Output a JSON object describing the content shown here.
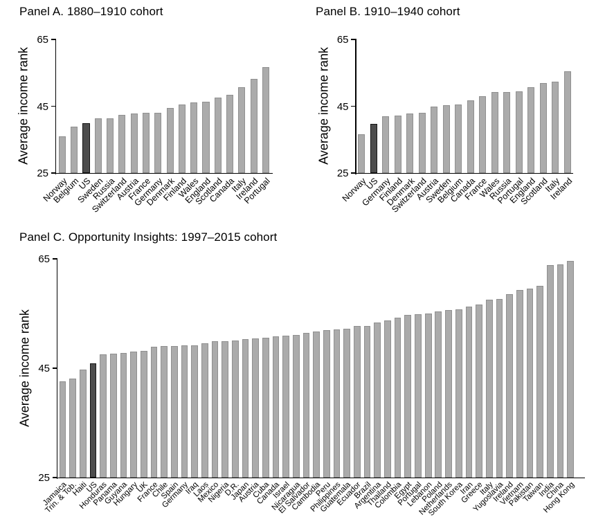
{
  "colors": {
    "bar_fill": "#ababab",
    "bar_border": "#8f8f8f",
    "highlight_fill": "#4d4d4d",
    "highlight_border": "#141414",
    "axis": "#000000",
    "background": "#ffffff"
  },
  "chart_data": [
    {
      "type": "bar",
      "title": "Panel A. 1880–1910 cohort",
      "xlabel": "",
      "ylabel": "Average income rank",
      "ylim": [
        25,
        65
      ],
      "yticks": [
        25,
        45,
        65
      ],
      "grid": false,
      "legend": "none",
      "highlight": "US",
      "categories": [
        "Norway",
        "Belgium",
        "US",
        "Sweden",
        "Russia",
        "Switzerland",
        "Austria",
        "France",
        "Germany",
        "Denmark",
        "Finland",
        "Wales",
        "England",
        "Scotland",
        "Canada",
        "Italy",
        "Ireland",
        "Portugal"
      ],
      "values": [
        35.9,
        38.8,
        39.9,
        41.3,
        41.3,
        42.4,
        42.9,
        43.0,
        43.1,
        44.4,
        45.5,
        46.1,
        46.3,
        47.6,
        48.5,
        50.7,
        53.1,
        56.8
      ]
    },
    {
      "type": "bar",
      "title": "Panel B. 1910–1940 cohort",
      "xlabel": "",
      "ylabel": "Average income rank",
      "ylim": [
        25,
        65
      ],
      "yticks": [
        25,
        45,
        65
      ],
      "grid": false,
      "legend": "none",
      "highlight": "US",
      "categories": [
        "Norway",
        "US",
        "Germany",
        "Finland",
        "Denmark",
        "Switzerland",
        "Austria",
        "Sweden",
        "Belgium",
        "Canada",
        "France",
        "Wales",
        "Russia",
        "Portugal",
        "England",
        "Scotland",
        "Italy",
        "Ireland"
      ],
      "values": [
        36.7,
        39.8,
        42.0,
        42.2,
        42.8,
        43.1,
        44.8,
        45.4,
        45.6,
        46.8,
        48.1,
        49.2,
        49.2,
        49.4,
        50.7,
        52.0,
        52.3,
        55.5
      ]
    },
    {
      "type": "bar",
      "title": "Panel C. Opportunity Insights: 1997–2015 cohort",
      "xlabel": "",
      "ylabel": "Average income rank",
      "ylim": [
        25,
        65
      ],
      "yticks": [
        25,
        45,
        65
      ],
      "grid": false,
      "legend": "none",
      "highlight": "US",
      "categories": [
        "Jamaica",
        "Trin. & Tob.",
        "Haiti",
        "US",
        "Honduras",
        "Panama",
        "Guyana",
        "Hungary",
        "UK",
        "France",
        "Chile",
        "Spain",
        "Germany",
        "Iraq",
        "Laos",
        "Mexico",
        "Nigeria",
        "D.R.",
        "Japan",
        "Austria",
        "Cuba",
        "Canada",
        "Israel",
        "Nicaragua",
        "El Salvador",
        "Cambodia",
        "Peru",
        "Philippines",
        "Guatemala",
        "Ecuador",
        "Brazil",
        "Argentina",
        "Thailand",
        "Colombia",
        "Egypt",
        "Portugal",
        "Lebanon",
        "Poland",
        "Netherlands",
        "South Korea",
        "Iran",
        "Greece",
        "Italy",
        "Yugoslavia",
        "Ireland",
        "Vietnam",
        "Pakistan",
        "Taiwan",
        "India",
        "China",
        "Hong Kong"
      ],
      "values": [
        42.6,
        43.1,
        44.8,
        45.9,
        47.5,
        47.6,
        47.8,
        48.0,
        48.2,
        48.9,
        49.0,
        49.1,
        49.2,
        49.2,
        49.6,
        50.0,
        50.0,
        50.1,
        50.3,
        50.5,
        50.6,
        50.8,
        51.0,
        51.1,
        51.4,
        51.7,
        51.9,
        52.1,
        52.2,
        52.7,
        52.7,
        53.4,
        53.7,
        54.3,
        54.8,
        54.9,
        55.0,
        55.4,
        55.6,
        55.8,
        56.3,
        56.7,
        57.5,
        57.7,
        58.5,
        59.3,
        59.6,
        60.1,
        63.8,
        64.0,
        64.6
      ]
    }
  ]
}
